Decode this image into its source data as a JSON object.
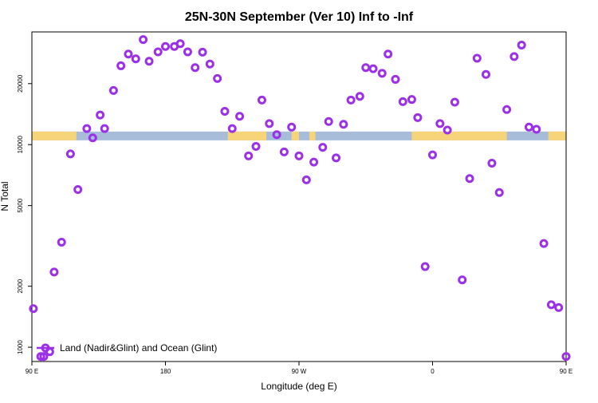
{
  "chart_data": {
    "type": "scatter",
    "title": "25N-30N September (Ver 10)   Inf to -Inf",
    "xlabel": "Longitude (deg E)",
    "ylabel": "N Total",
    "xlim": [
      90,
      450
    ],
    "ylim": [
      850,
      36000
    ],
    "y_scale": "log",
    "grid": false,
    "x_ticks": [
      {
        "value": 90,
        "label": "90 E"
      },
      {
        "value": 180,
        "label": "180"
      },
      {
        "value": 270,
        "label": "90 W"
      },
      {
        "value": 360,
        "label": "0"
      },
      {
        "value": 450,
        "label": "90 E"
      }
    ],
    "y_ticks": [
      {
        "value": 1000,
        "label": "1000"
      },
      {
        "value": 2000,
        "label": "2000"
      },
      {
        "value": 5000,
        "label": "5000"
      },
      {
        "value": 10000,
        "label": "10000"
      },
      {
        "value": 20000,
        "label": "20000"
      }
    ],
    "legend": {
      "label": "Land (Nadir&Glint) and Ocean (Glint)",
      "position": "bottom-left"
    },
    "colors": {
      "marker": "#9b30e8",
      "ocean": "#a7bcd9",
      "land": "#f5d47a"
    },
    "map_strip": {
      "y_range": [
        10500,
        11600
      ],
      "land_segments": [
        [
          90,
          120
        ],
        [
          222,
          248
        ],
        [
          265,
          270
        ],
        [
          277,
          281
        ],
        [
          346,
          410
        ],
        [
          438,
          450
        ]
      ]
    },
    "series": [
      {
        "x": [
          91,
          96,
          98,
          102,
          105,
          110,
          116,
          121,
          127,
          131,
          136,
          139,
          145,
          150,
          155,
          160,
          165,
          169,
          175,
          180,
          186,
          190,
          195,
          200,
          205,
          210,
          215,
          220,
          225,
          230,
          236,
          241,
          245,
          250,
          255,
          260,
          265,
          270,
          275,
          280,
          286,
          290,
          295,
          300,
          305,
          311,
          315,
          320,
          326,
          330,
          335,
          340,
          346,
          350,
          355,
          360,
          365,
          370,
          375,
          380,
          385,
          390,
          396,
          400,
          405,
          410,
          415,
          420,
          425,
          430,
          435,
          440,
          445,
          450
        ],
        "y": [
          1550,
          900,
          900,
          950,
          2350,
          3300,
          9000,
          6000,
          12000,
          10800,
          14000,
          12000,
          18500,
          24500,
          28000,
          26500,
          33000,
          25800,
          28700,
          30500,
          30500,
          31500,
          28700,
          24000,
          28600,
          25000,
          21200,
          14600,
          12000,
          13800,
          8800,
          9800,
          16600,
          12700,
          11200,
          9200,
          12200,
          8800,
          6700,
          8200,
          9700,
          13000,
          8600,
          12600,
          16600,
          17300,
          24000,
          23700,
          22500,
          28000,
          21000,
          16300,
          16700,
          13600,
          2500,
          8900,
          12700,
          11800,
          16200,
          2150,
          6800,
          26700,
          22200,
          8100,
          5800,
          14900,
          27200,
          31000,
          12200,
          11900,
          3250,
          1620,
          1570,
          900
        ]
      }
    ]
  }
}
